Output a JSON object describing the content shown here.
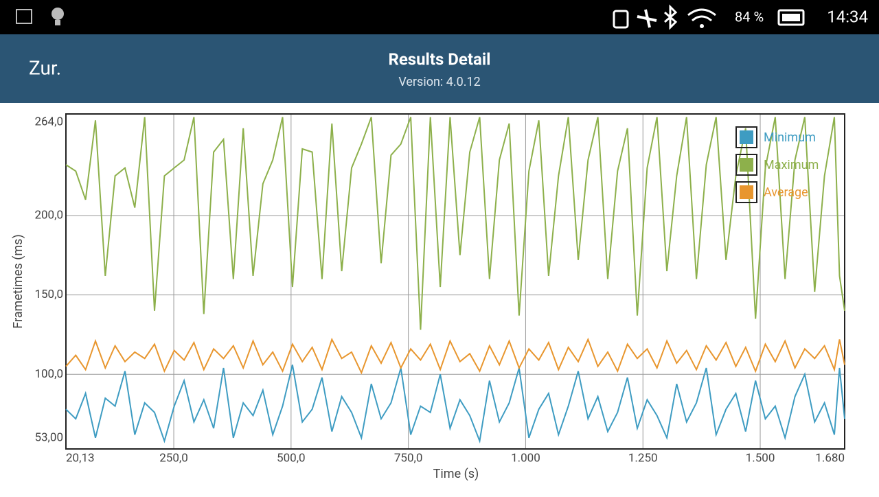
{
  "status_bar": {
    "battery": "84 %",
    "time": "14:34"
  },
  "app_bar": {
    "back": "Zur.",
    "title": "Results Detail",
    "subtitle": "Version: 4.0.12"
  },
  "chart_data": {
    "type": "line",
    "xlabel": "Time (s)",
    "ylabel": "Frametimes (ms)",
    "x": [
      20.13,
      41,
      62,
      83,
      104,
      125,
      146,
      167,
      188,
      209,
      230,
      251,
      272,
      293,
      314,
      335,
      356,
      377,
      398,
      419,
      440,
      461,
      482,
      503,
      524,
      545,
      566,
      587,
      608,
      629,
      650,
      671,
      692,
      713,
      734,
      755,
      776,
      797,
      818,
      839,
      860,
      881,
      902,
      923,
      944,
      965,
      986,
      1007,
      1028,
      1049,
      1070,
      1091,
      1112,
      1133,
      1154,
      1175,
      1196,
      1217,
      1238,
      1259,
      1280,
      1301,
      1322,
      1343,
      1364,
      1385,
      1406,
      1427,
      1448,
      1469,
      1490,
      1511,
      1532,
      1553,
      1574,
      1595,
      1616,
      1637,
      1658,
      1669,
      1680
    ],
    "series": [
      {
        "name": "Minimum",
        "color": "#3e9cc2",
        "values": [
          78,
          72,
          88,
          60,
          85,
          80,
          102,
          62,
          82,
          76,
          58,
          80,
          96,
          70,
          84,
          66,
          104,
          60,
          82,
          74,
          90,
          62,
          80,
          106,
          70,
          78,
          98,
          64,
          86,
          76,
          60,
          94,
          72,
          82,
          104,
          62,
          80,
          76,
          100,
          66,
          84,
          74,
          58,
          96,
          70,
          82,
          104,
          60,
          78,
          88,
          62,
          80,
          102,
          72,
          86,
          64,
          76,
          98,
          66,
          84,
          74,
          60,
          94,
          70,
          82,
          104,
          62,
          78,
          88,
          64,
          96,
          72,
          80,
          60,
          86,
          100,
          70,
          82,
          62,
          104,
          72
        ]
      },
      {
        "name": "Maximum",
        "color": "#8db04b",
        "values": [
          232,
          228,
          210,
          260,
          162,
          225,
          230,
          205,
          262,
          140,
          225,
          230,
          235,
          262,
          138,
          240,
          248,
          160,
          255,
          162,
          220,
          235,
          262,
          155,
          242,
          240,
          160,
          258,
          165,
          230,
          245,
          262,
          170,
          238,
          245,
          262,
          128,
          262,
          155,
          262,
          175,
          240,
          262,
          160,
          235,
          258,
          137,
          228,
          260,
          162,
          225,
          262,
          172,
          235,
          262,
          160,
          228,
          255,
          137,
          230,
          262,
          165,
          225,
          262,
          160,
          232,
          262,
          172,
          225,
          255,
          135,
          230,
          262,
          160,
          235,
          262,
          152,
          225,
          262,
          162,
          140
        ]
      },
      {
        "name": "Average",
        "color": "#e8962e",
        "values": [
          105,
          112,
          103,
          121,
          104,
          118,
          108,
          114,
          110,
          119,
          102,
          115,
          109,
          120,
          103,
          116,
          110,
          118,
          104,
          121,
          106,
          114,
          102,
          119,
          108,
          117,
          103,
          122,
          110,
          114,
          101,
          118,
          107,
          120,
          104,
          116,
          109,
          119,
          103,
          121,
          108,
          113,
          102,
          118,
          106,
          121,
          104,
          116,
          109,
          120,
          103,
          117,
          108,
          122,
          105,
          114,
          102,
          119,
          110,
          116,
          104,
          121,
          107,
          115,
          103,
          118,
          109,
          120,
          105,
          117,
          102,
          119,
          108,
          121,
          104,
          116,
          110,
          118,
          103,
          122,
          106
        ]
      }
    ],
    "xlim": [
      20.13,
      1680
    ],
    "xticks": [
      {
        "value": 20.13,
        "label": "20,13"
      },
      {
        "value": 250,
        "label": "250,0"
      },
      {
        "value": 500,
        "label": "500,0"
      },
      {
        "value": 750,
        "label": "750,0"
      },
      {
        "value": 1000,
        "label": "1.000"
      },
      {
        "value": 1250,
        "label": "1.250"
      },
      {
        "value": 1500,
        "label": "1.500"
      },
      {
        "value": 1680,
        "label": "1.680"
      }
    ],
    "ylim": [
      53,
      264
    ],
    "yticks": [
      {
        "value": 53,
        "label": "53,00"
      },
      {
        "value": 100,
        "label": "100,0"
      },
      {
        "value": 150,
        "label": "150,0"
      },
      {
        "value": 200,
        "label": "200,0"
      },
      {
        "value": 264,
        "label": "264,0"
      }
    ],
    "grid": true,
    "legend": "top-right"
  }
}
